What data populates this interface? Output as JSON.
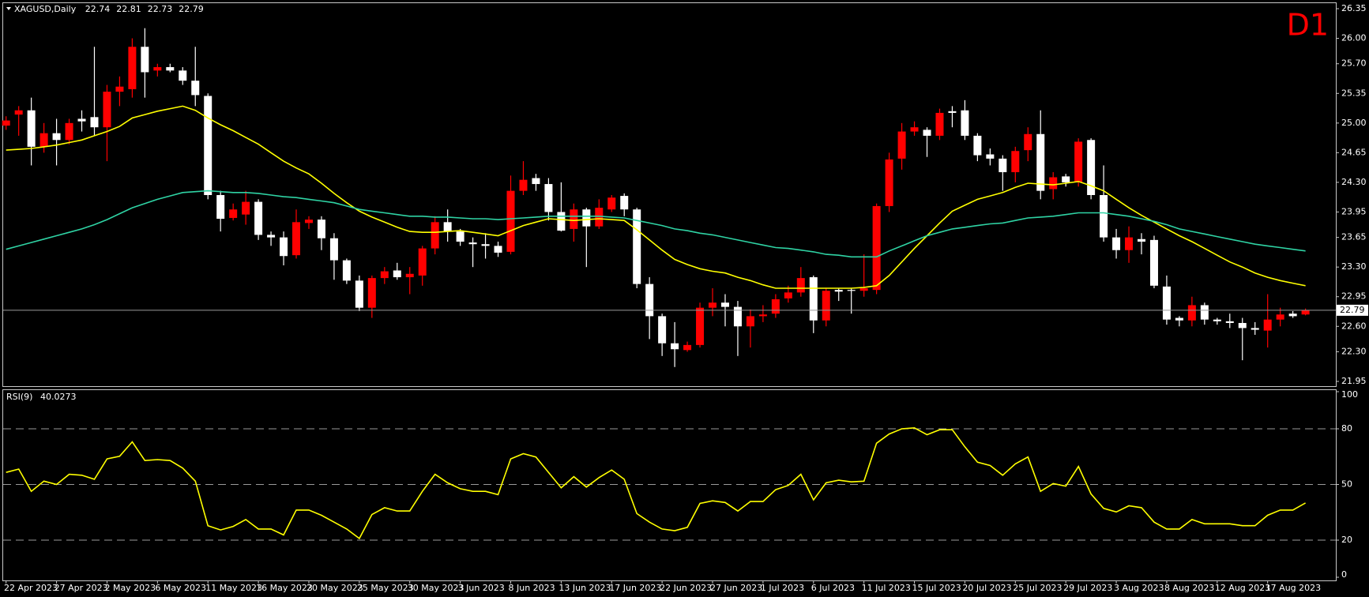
{
  "chart_data": [
    {
      "type": "candlestick",
      "title": "XAGUSD,Daily",
      "annotation": "D1",
      "annotation_color": "#ff0000",
      "up_color": "#ff0000",
      "down_color": "#ffffff",
      "last_price_line": true,
      "grid": false,
      "categories": [
        "22 Apr 2023",
        null,
        null,
        null,
        "27 Apr 2023",
        null,
        null,
        null,
        "2 May 2023",
        null,
        null,
        null,
        "6 May 2023",
        null,
        null,
        null,
        "11 May 2023",
        null,
        null,
        null,
        "16 May 2023",
        null,
        null,
        null,
        "20 May 2023",
        null,
        null,
        null,
        "25 May 2023",
        null,
        null,
        null,
        "30 May 2023",
        null,
        null,
        null,
        "3 Jun 2023",
        null,
        null,
        null,
        "8 Jun 2023",
        null,
        null,
        null,
        "13 Jun 2023",
        null,
        null,
        null,
        "17 Jun 2023",
        null,
        null,
        null,
        "22 Jun 2023",
        null,
        null,
        null,
        "27 Jun 2023",
        null,
        null,
        null,
        "1 Jul 2023",
        null,
        null,
        null,
        "6 Jul 2023",
        null,
        null,
        null,
        "11 Jul 2023",
        null,
        null,
        null,
        "15 Jul 2023",
        null,
        null,
        null,
        "20 Jul 2023",
        null,
        null,
        null,
        "25 Jul 2023",
        null,
        null,
        null,
        "29 Jul 2023",
        null,
        null,
        null,
        "3 Aug 2023",
        null,
        null,
        null,
        "8 Aug 2023",
        null,
        null,
        null,
        "12 Aug 2023",
        null,
        null,
        null,
        "17 Aug 2023",
        null,
        null,
        null
      ],
      "open": [
        24.97,
        25.1,
        25.15,
        24.72,
        24.88,
        24.8,
        25.05,
        25.07,
        24.95,
        25.37,
        25.4,
        25.9,
        25.62,
        25.66,
        25.62,
        25.5,
        25.32,
        24.15,
        23.88,
        23.92,
        24.07,
        23.68,
        23.65,
        23.44,
        23.82,
        23.86,
        23.64,
        23.38,
        23.14,
        22.82,
        23.17,
        23.26,
        23.18,
        23.2,
        23.52,
        23.83,
        23.72,
        23.59,
        23.57,
        23.55,
        23.48,
        24.2,
        24.35,
        24.28,
        23.95,
        23.75,
        23.98,
        23.78,
        23.98,
        24.14,
        23.98,
        23.1,
        22.72,
        22.4,
        22.32,
        22.38,
        22.82,
        22.88,
        22.83,
        22.6,
        22.72,
        22.75,
        22.93,
        23.0,
        23.18,
        22.67,
        23.03,
        23.03,
        23.02,
        23.03,
        24.02,
        24.58,
        24.9,
        24.92,
        24.85,
        25.14,
        25.15,
        24.85,
        24.63,
        24.58,
        24.42,
        24.68,
        24.87,
        24.22,
        24.37,
        24.3,
        24.8,
        24.15,
        23.65,
        23.5,
        23.63,
        23.62,
        23.07,
        22.7,
        22.67,
        22.85,
        22.68,
        22.66,
        22.64,
        22.58,
        22.55,
        22.68,
        22.75,
        22.74
      ],
      "high": [
        25.08,
        25.2,
        25.3,
        25.0,
        25.05,
        25.05,
        25.15,
        25.9,
        25.45,
        25.55,
        26.0,
        26.12,
        25.7,
        25.7,
        25.66,
        25.9,
        25.35,
        24.2,
        24.05,
        24.2,
        24.1,
        23.72,
        23.72,
        23.98,
        23.9,
        23.9,
        23.7,
        23.4,
        23.2,
        23.2,
        23.3,
        23.35,
        23.3,
        23.55,
        23.9,
        23.98,
        23.75,
        23.65,
        23.7,
        23.6,
        24.38,
        24.55,
        24.4,
        24.35,
        24.3,
        24.05,
        24.0,
        24.1,
        24.15,
        24.17,
        24.0,
        23.18,
        22.75,
        22.65,
        22.42,
        22.88,
        23.05,
        22.98,
        22.9,
        22.8,
        22.85,
        22.98,
        23.08,
        23.3,
        23.2,
        23.05,
        23.05,
        23.05,
        23.45,
        24.05,
        24.65,
        25.0,
        25.02,
        24.95,
        25.17,
        25.2,
        25.27,
        24.88,
        24.7,
        24.62,
        24.72,
        24.95,
        25.15,
        24.42,
        24.4,
        24.82,
        24.82,
        24.5,
        23.75,
        23.78,
        23.7,
        23.67,
        23.2,
        22.72,
        22.95,
        22.88,
        22.7,
        22.75,
        22.7,
        22.65,
        22.98,
        22.82,
        22.78,
        22.81
      ],
      "low": [
        24.92,
        24.85,
        24.5,
        24.65,
        24.5,
        24.75,
        24.9,
        24.85,
        24.55,
        25.2,
        25.3,
        25.3,
        25.55,
        25.6,
        25.45,
        25.2,
        24.1,
        23.72,
        23.85,
        23.8,
        23.62,
        23.55,
        23.32,
        23.4,
        23.75,
        23.5,
        23.15,
        23.1,
        22.78,
        22.7,
        23.1,
        23.15,
        22.98,
        23.08,
        23.45,
        23.6,
        23.55,
        23.3,
        23.4,
        23.42,
        23.45,
        24.15,
        24.2,
        23.85,
        23.72,
        23.6,
        23.3,
        23.75,
        23.95,
        23.9,
        23.05,
        22.45,
        22.25,
        22.12,
        22.3,
        22.35,
        22.72,
        22.6,
        22.25,
        22.35,
        22.65,
        22.7,
        22.88,
        22.95,
        22.52,
        22.6,
        22.9,
        22.75,
        22.95,
        22.98,
        23.95,
        24.45,
        24.85,
        24.6,
        24.8,
        24.95,
        24.8,
        24.55,
        24.5,
        24.2,
        24.3,
        24.55,
        24.1,
        24.1,
        24.25,
        24.25,
        24.1,
        23.6,
        23.4,
        23.35,
        23.45,
        23.05,
        22.62,
        22.6,
        22.6,
        22.62,
        22.62,
        22.58,
        22.2,
        22.5,
        22.35,
        22.6,
        22.7,
        22.73
      ],
      "close": [
        25.03,
        25.15,
        24.72,
        24.88,
        24.8,
        25.0,
        25.02,
        24.95,
        25.37,
        25.43,
        25.9,
        25.6,
        25.66,
        25.62,
        25.5,
        25.33,
        24.15,
        23.87,
        23.98,
        24.07,
        23.68,
        23.65,
        23.43,
        23.83,
        23.86,
        23.64,
        23.38,
        23.14,
        22.82,
        23.17,
        23.25,
        23.18,
        23.22,
        23.52,
        23.83,
        23.72,
        23.6,
        23.57,
        23.55,
        23.47,
        24.2,
        24.33,
        24.28,
        23.95,
        23.73,
        23.98,
        23.78,
        24.0,
        24.12,
        23.98,
        23.1,
        22.72,
        22.4,
        22.33,
        22.38,
        22.82,
        22.88,
        22.83,
        22.6,
        22.72,
        22.74,
        22.92,
        23.0,
        23.17,
        22.67,
        23.02,
        23.01,
        23.02,
        23.05,
        24.02,
        24.57,
        24.9,
        24.95,
        24.85,
        25.12,
        25.12,
        24.85,
        24.62,
        24.58,
        24.42,
        24.67,
        24.87,
        24.2,
        24.36,
        24.3,
        24.78,
        24.15,
        23.65,
        23.5,
        23.65,
        23.6,
        23.08,
        22.68,
        22.67,
        22.85,
        22.68,
        22.66,
        22.64,
        22.58,
        22.56,
        22.68,
        22.74,
        22.72,
        22.79
      ],
      "series": [
        {
          "color": "#ffff00",
          "values": [
            24.68,
            24.69,
            24.7,
            24.72,
            24.74,
            24.77,
            24.8,
            24.85,
            24.9,
            24.96,
            25.06,
            25.1,
            25.14,
            25.17,
            25.2,
            25.15,
            25.06,
            24.98,
            24.91,
            24.83,
            24.75,
            24.65,
            24.55,
            24.47,
            24.4,
            24.29,
            24.17,
            24.06,
            23.96,
            23.89,
            23.83,
            23.77,
            23.72,
            23.71,
            23.71,
            23.72,
            23.73,
            23.71,
            23.69,
            23.67,
            23.73,
            23.79,
            23.83,
            23.87,
            23.86,
            23.85,
            23.86,
            23.87,
            23.86,
            23.85,
            23.74,
            23.62,
            23.5,
            23.39,
            23.33,
            23.28,
            23.25,
            23.23,
            23.18,
            23.14,
            23.09,
            23.05,
            23.05,
            23.05,
            23.05,
            23.05,
            23.05,
            23.05,
            23.06,
            23.08,
            23.2,
            23.36,
            23.52,
            23.67,
            23.82,
            23.96,
            24.03,
            24.1,
            24.14,
            24.18,
            24.24,
            24.29,
            24.28,
            24.27,
            24.29,
            24.31,
            24.26,
            24.2,
            24.1,
            24.0,
            23.91,
            23.83,
            23.75,
            23.67,
            23.6,
            23.52,
            23.44,
            23.36,
            23.3,
            23.23,
            23.18,
            23.14,
            23.11,
            23.08
          ]
        },
        {
          "color": "#2fd3a4",
          "values": [
            23.51,
            23.55,
            23.59,
            23.63,
            23.67,
            23.71,
            23.75,
            23.8,
            23.86,
            23.93,
            24.0,
            24.05,
            24.1,
            24.14,
            24.18,
            24.19,
            24.2,
            24.19,
            24.18,
            24.18,
            24.17,
            24.15,
            24.13,
            24.12,
            24.1,
            24.08,
            24.06,
            24.02,
            23.98,
            23.96,
            23.94,
            23.92,
            23.9,
            23.9,
            23.89,
            23.89,
            23.88,
            23.87,
            23.87,
            23.86,
            23.87,
            23.88,
            23.89,
            23.9,
            23.9,
            23.9,
            23.9,
            23.9,
            23.89,
            23.88,
            23.85,
            23.82,
            23.79,
            23.75,
            23.73,
            23.7,
            23.68,
            23.65,
            23.62,
            23.59,
            23.56,
            23.53,
            23.52,
            23.5,
            23.48,
            23.45,
            23.44,
            23.42,
            23.42,
            23.42,
            23.49,
            23.55,
            23.61,
            23.67,
            23.71,
            23.75,
            23.77,
            23.79,
            23.81,
            23.82,
            23.85,
            23.88,
            23.89,
            23.9,
            23.92,
            23.94,
            23.94,
            23.94,
            23.92,
            23.9,
            23.87,
            23.84,
            23.8,
            23.75,
            23.72,
            23.69,
            23.66,
            23.63,
            23.6,
            23.57,
            23.55,
            23.53,
            23.51,
            23.49
          ]
        }
      ],
      "ylim": [
        21.95,
        26.35
      ],
      "yticks": [
        26.35,
        {
          "value": 26.0,
          "label": "26.00"
        },
        {
          "value": 25.7,
          "label": "25.70"
        },
        25.35,
        {
          "value": 25.0,
          "label": "25.00"
        },
        24.65,
        {
          "value": 24.3,
          "label": "24.30"
        },
        23.95,
        23.65,
        {
          "value": 23.3,
          "label": "23.30"
        },
        22.95,
        {
          "value": 22.6,
          "label": "22.60"
        },
        {
          "value": 22.3,
          "label": "22.30"
        },
        21.95
      ]
    },
    {
      "type": "line",
      "title": "RSI(9)",
      "series": [
        {
          "color": "#ffff00",
          "values": [
            56.5,
            58.3,
            46.3,
            51.8,
            50.0,
            55.5,
            55.0,
            52.8,
            63.8,
            65.2,
            73.0,
            62.9,
            63.4,
            62.9,
            58.8,
            51.8,
            27.8,
            25.5,
            27.4,
            31.1,
            26.0,
            26.0,
            22.8,
            36.2,
            36.2,
            33.4,
            29.7,
            26.0,
            20.9,
            33.8,
            37.5,
            35.7,
            35.7,
            46.3,
            55.5,
            50.9,
            47.7,
            46.3,
            46.3,
            44.5,
            63.8,
            66.6,
            64.8,
            56.5,
            48.2,
            54.2,
            48.6,
            53.7,
            57.8,
            52.8,
            34.3,
            29.7,
            26.0,
            25.1,
            26.9,
            39.8,
            41.2,
            40.3,
            35.7,
            40.8,
            40.8,
            47.2,
            49.5,
            55.5,
            41.7,
            50.9,
            52.3,
            51.4,
            51.8,
            72.2,
            77.2,
            80.0,
            80.5,
            76.8,
            79.5,
            79.5,
            70.3,
            62.0,
            60.2,
            55.0,
            61.1,
            64.8,
            46.3,
            50.5,
            49.1,
            59.7,
            44.9,
            37.1,
            35.2,
            38.5,
            37.5,
            29.7,
            26.0,
            26.0,
            31.1,
            28.8,
            28.8,
            28.8,
            27.8,
            27.8,
            33.4,
            36.2,
            36.2,
            40.0273
          ]
        }
      ],
      "ylim": [
        0,
        100
      ],
      "yticks": [
        100,
        80,
        50,
        20,
        0
      ]
    }
  ]
}
